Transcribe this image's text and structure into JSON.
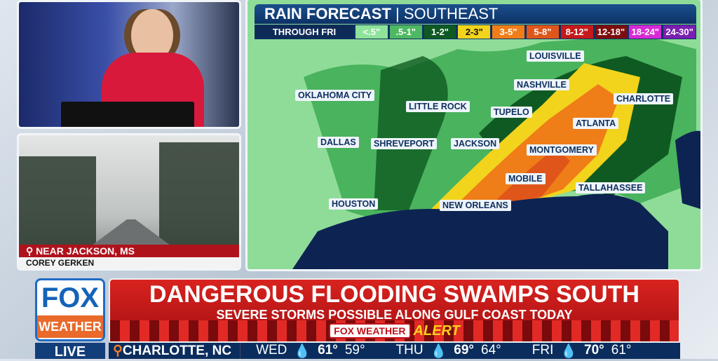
{
  "video": {
    "location": "NEAR JACKSON, MS",
    "reporter": "COREY GERKEN"
  },
  "map": {
    "title": "RAIN FORECAST",
    "region": "SOUTHEAST",
    "period": "THROUGH FRI",
    "legend": [
      {
        "label": "<.5\"",
        "color": "#8de39a"
      },
      {
        "label": ".5-1\"",
        "color": "#4fb862"
      },
      {
        "label": "1-2\"",
        "color": "#0f5a22"
      },
      {
        "label": "2-3\"",
        "color": "#f2d41c"
      },
      {
        "label": "3-5\"",
        "color": "#ef7d18"
      },
      {
        "label": "5-8\"",
        "color": "#e0561a"
      },
      {
        "label": "8-12\"",
        "color": "#c41a1a"
      },
      {
        "label": "12-18\"",
        "color": "#7d0d0d"
      },
      {
        "label": "18-24\"",
        "color": "#d62ad6"
      },
      {
        "label": "24-30\"",
        "color": "#7a1fb0"
      }
    ],
    "cities": [
      "LOUISVILLE",
      "NASHVILLE",
      "CHARLOTTE",
      "OKLAHOMA CITY",
      "LITTLE ROCK",
      "TUPELO",
      "ATLANTA",
      "DALLAS",
      "SHREVEPORT",
      "JACKSON",
      "MONTGOMERY",
      "MOBILE",
      "TALLAHASSEE",
      "HOUSTON",
      "NEW ORLEANS"
    ]
  },
  "banner": {
    "headline": "DANGEROUS FLOODING SWAMPS SOUTH",
    "subhead": "SEVERE STORMS POSSIBLE ALONG GULF COAST TODAY",
    "alert_brand": "FOX WEATHER",
    "alert_word": "ALERT"
  },
  "logo": {
    "top": "FOX",
    "bottom": "WEATHER",
    "live": "LIVE"
  },
  "ticker": {
    "location": "CHARLOTTE, NC",
    "days": [
      {
        "day": "WED",
        "high": "61°",
        "low": "59°"
      },
      {
        "day": "THU",
        "high": "69°",
        "low": "64°"
      },
      {
        "day": "FRI",
        "high": "70°",
        "low": "61°"
      }
    ]
  }
}
